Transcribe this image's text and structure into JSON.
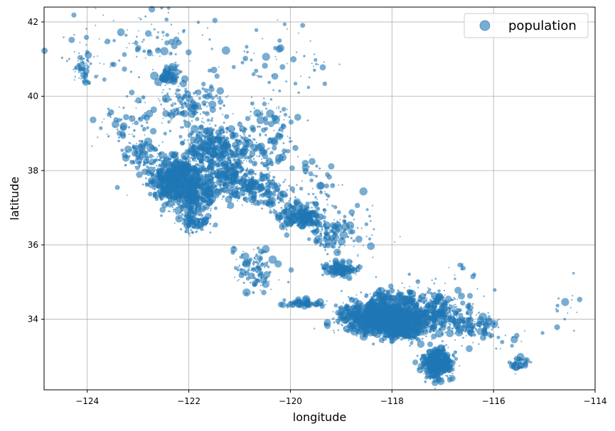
{
  "chart_data": {
    "type": "scatter",
    "title": "",
    "xlabel": "longitude",
    "ylabel": "latitude",
    "xlim": [
      -124.85,
      -114.0
    ],
    "ylim": [
      32.1,
      42.4
    ],
    "xticks": [
      -124,
      -122,
      -120,
      -118,
      -116,
      -114
    ],
    "yticks": [
      34,
      36,
      38,
      40,
      42
    ],
    "xtick_labels": [
      "−124",
      "−122",
      "−120",
      "−118",
      "−116",
      "−114"
    ],
    "ytick_labels": [
      "34",
      "36",
      "38",
      "40",
      "42"
    ],
    "grid": true,
    "legend": {
      "position": "top-right",
      "entries": [
        "population"
      ]
    },
    "colors": {
      "marker": "#1f77b4",
      "grid": "#b0b0b0"
    },
    "alpha": 0.6,
    "series": [
      {
        "name": "population",
        "clusters": [
          {
            "x": -122.2,
            "y": 37.8,
            "sx": 0.3,
            "sy": 0.3,
            "n": 700
          },
          {
            "x": -121.9,
            "y": 37.3,
            "sx": 0.2,
            "sy": 0.3,
            "n": 350
          },
          {
            "x": -122.4,
            "y": 37.6,
            "sx": 0.12,
            "sy": 0.2,
            "n": 180
          },
          {
            "x": -121.5,
            "y": 38.6,
            "sx": 0.25,
            "sy": 0.3,
            "n": 400
          },
          {
            "x": -121.2,
            "y": 37.9,
            "sx": 0.2,
            "sy": 0.3,
            "n": 200
          },
          {
            "x": -120.9,
            "y": 37.6,
            "sx": 0.3,
            "sy": 0.2,
            "n": 200
          },
          {
            "x": -119.8,
            "y": 36.75,
            "sx": 0.2,
            "sy": 0.15,
            "n": 300
          },
          {
            "x": -119.2,
            "y": 36.3,
            "sx": 0.2,
            "sy": 0.2,
            "n": 120
          },
          {
            "x": -119.0,
            "y": 35.35,
            "sx": 0.15,
            "sy": 0.08,
            "n": 180
          },
          {
            "x": -118.2,
            "y": 34.05,
            "sx": 0.4,
            "sy": 0.2,
            "n": 1500
          },
          {
            "x": -117.8,
            "y": 33.75,
            "sx": 0.25,
            "sy": 0.15,
            "n": 500
          },
          {
            "x": -117.2,
            "y": 34.1,
            "sx": 0.4,
            "sy": 0.2,
            "n": 400
          },
          {
            "x": -117.1,
            "y": 32.8,
            "sx": 0.15,
            "sy": 0.2,
            "n": 500
          },
          {
            "x": -121.9,
            "y": 36.6,
            "sx": 0.15,
            "sy": 0.15,
            "n": 100
          },
          {
            "x": -122.0,
            "y": 39.8,
            "sx": 0.4,
            "sy": 0.3,
            "n": 150
          },
          {
            "x": -122.4,
            "y": 40.55,
            "sx": 0.1,
            "sy": 0.1,
            "n": 100
          },
          {
            "x": -124.1,
            "y": 40.8,
            "sx": 0.1,
            "sy": 0.2,
            "n": 60
          },
          {
            "x": -120.7,
            "y": 35.3,
            "sx": 0.2,
            "sy": 0.3,
            "n": 120
          },
          {
            "x": -119.75,
            "y": 34.42,
            "sx": 0.2,
            "sy": 0.05,
            "n": 100
          },
          {
            "x": -116.4,
            "y": 33.8,
            "sx": 0.3,
            "sy": 0.15,
            "n": 100
          },
          {
            "x": -118.2,
            "y": 34.62,
            "sx": 0.2,
            "sy": 0.1,
            "n": 80
          },
          {
            "x": -117.3,
            "y": 34.5,
            "sx": 0.3,
            "sy": 0.1,
            "n": 80
          },
          {
            "x": -123.2,
            "y": 39.2,
            "sx": 0.4,
            "sy": 0.4,
            "n": 80
          },
          {
            "x": -120.4,
            "y": 37.3,
            "sx": 0.2,
            "sy": 0.2,
            "n": 80
          },
          {
            "x": -120.6,
            "y": 38.3,
            "sx": 0.4,
            "sy": 0.5,
            "n": 150
          },
          {
            "x": -119.5,
            "y": 37.4,
            "sx": 0.3,
            "sy": 0.4,
            "n": 60
          },
          {
            "x": -115.5,
            "y": 32.8,
            "sx": 0.1,
            "sy": 0.1,
            "n": 60
          },
          {
            "x": -114.6,
            "y": 34.0,
            "sx": 0.15,
            "sy": 0.5,
            "n": 15
          },
          {
            "x": -122.8,
            "y": 41.4,
            "sx": 1.0,
            "sy": 0.5,
            "n": 120
          },
          {
            "x": -120.4,
            "y": 39.3,
            "sx": 0.3,
            "sy": 0.3,
            "n": 60
          },
          {
            "x": -118.7,
            "y": 36.2,
            "sx": 0.4,
            "sy": 0.5,
            "n": 40
          },
          {
            "x": -117.1,
            "y": 34.9,
            "sx": 0.4,
            "sy": 0.2,
            "n": 40
          },
          {
            "x": -120.2,
            "y": 40.9,
            "sx": 0.6,
            "sy": 0.6,
            "n": 60
          },
          {
            "x": -122.9,
            "y": 38.4,
            "sx": 0.2,
            "sy": 0.2,
            "n": 100
          },
          {
            "x": -116.6,
            "y": 35.44,
            "sx": 0.05,
            "sy": 0.05,
            "n": 5
          },
          {
            "x": -116.0,
            "y": 33.5,
            "sx": 0.4,
            "sy": 0.2,
            "n": 30
          }
        ]
      }
    ]
  }
}
